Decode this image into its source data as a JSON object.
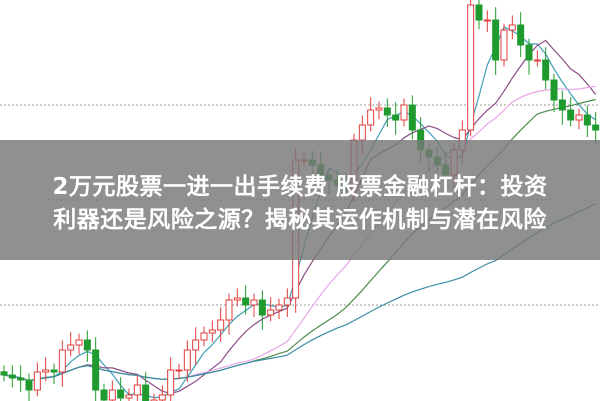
{
  "headline": {
    "line1": "2万元股票一进一出手续费 股票金融杠杆：投资",
    "line2": "利器还是风险之源？揭秘其运作机制与潜在风险"
  },
  "chart_data": {
    "type": "candlestick",
    "grid": true,
    "ylim": [
      0,
      105
    ],
    "up_color": "#e03c3c",
    "down_color": "#1f9a2e",
    "closes": [
      11.25,
      10.5,
      10,
      7.5,
      12,
      12.5,
      12,
      17.5,
      18.75,
      20,
      17.5,
      7.5,
      5,
      7.5,
      5.5,
      6.25,
      8.75,
      2.5,
      5,
      6.25,
      12.5,
      12.5,
      17.5,
      20,
      21.75,
      22.5,
      25,
      30,
      30.5,
      28.75,
      30,
      26.25,
      27.5,
      28.75,
      30.5,
      65,
      65,
      63.75,
      61.25,
      60,
      58.75,
      57.5,
      70,
      73.75,
      77.5,
      78,
      76.25,
      75,
      78.75,
      72.5,
      67.5,
      65.75,
      63.75,
      61.25,
      67.5,
      72.5,
      103.75,
      100,
      100,
      90,
      97.5,
      98.75,
      93.75,
      90,
      90,
      85,
      80,
      77.5,
      75,
      76.25,
      73.75,
      72.5
    ],
    "moving_averages": [
      {
        "period": 5,
        "color": "#3f9fb5"
      },
      {
        "period": 10,
        "color": "#8a4f86"
      },
      {
        "period": 20,
        "color": "#e7a6e6"
      },
      {
        "period": 30,
        "color": "#4f8a4f"
      },
      {
        "period": 60,
        "color": "#3a8ea5"
      }
    ]
  }
}
